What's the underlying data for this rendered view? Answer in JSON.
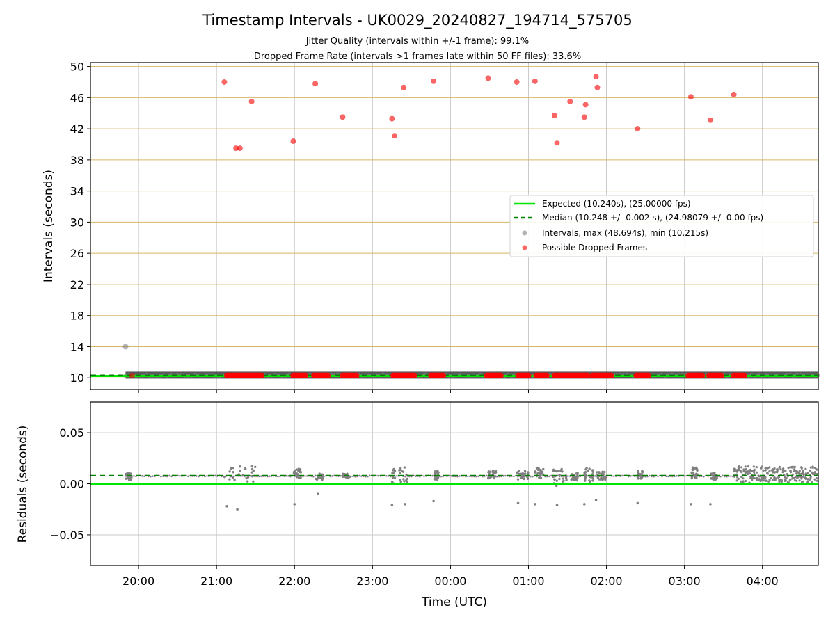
{
  "title": "Timestamp Intervals - UK0029_20240827_194714_575705",
  "subtitle_1": "Jitter Quality (intervals within +/-1 frame): 99.1%",
  "subtitle_2": "Dropped Frame Rate (intervals >1 frames late within 50 FF files): 33.6%",
  "colors": {
    "expected": "#00e600",
    "median": "#008000",
    "intervals": "#808080",
    "dropped": "#ff0000",
    "hgrid_top": "#d8b765",
    "grid": "#c8c8c8"
  },
  "chart_data": [
    {
      "type": "scatter",
      "ylabel": "Intervals (seconds)",
      "xlim": [
        "19:23",
        "04:43"
      ],
      "ylim": [
        8.5,
        50.5
      ],
      "yticks": [
        "10",
        "14",
        "18",
        "22",
        "26",
        "30",
        "34",
        "38",
        "42",
        "46",
        "50"
      ],
      "grid": true,
      "legend_position": "center-right",
      "legend": [
        "Expected (10.240s), (25.00000 fps)",
        "Median (10.248 +/- 0.002 s), (24.98079 +/- 0.00 fps)",
        "Intervals, max (48.694s), min (10.215s)",
        "Possible Dropped Frames"
      ],
      "expected": 10.24,
      "median": 10.248,
      "intervals_band": {
        "x_start": "19:50",
        "x_end": "04:43",
        "y": 10.25
      },
      "interval_outlier": {
        "x": "19:50",
        "y": 14.0
      },
      "dropped_clusters": [
        {
          "x_start": "21:08",
          "x_end": "21:35"
        },
        {
          "x_start": "21:59",
          "x_end": "22:09"
        },
        {
          "x_start": "22:15",
          "x_end": "22:26"
        },
        {
          "x_start": "22:37",
          "x_end": "22:48"
        },
        {
          "x_start": "23:16",
          "x_end": "23:33"
        },
        {
          "x_start": "23:45",
          "x_end": "23:55"
        },
        {
          "x_start": "00:28",
          "x_end": "00:39"
        },
        {
          "x_start": "00:52",
          "x_end": "01:01"
        },
        {
          "x_start": "01:06",
          "x_end": "01:15"
        },
        {
          "x_start": "01:20",
          "x_end": "01:46"
        },
        {
          "x_start": "01:49",
          "x_end": "02:04"
        },
        {
          "x_start": "02:23",
          "x_end": "02:33"
        },
        {
          "x_start": "03:03",
          "x_end": "03:14"
        },
        {
          "x_start": "03:19",
          "x_end": "03:29"
        },
        {
          "x_start": "03:38",
          "x_end": "03:47"
        }
      ],
      "dropped_frames": [
        {
          "x": "19:55",
          "y": 10.3
        },
        {
          "x": "21:06",
          "y": 48.0
        },
        {
          "x": "21:15",
          "y": 39.5
        },
        {
          "x": "21:18",
          "y": 39.5
        },
        {
          "x": "21:27",
          "y": 45.5
        },
        {
          "x": "21:59",
          "y": 40.4
        },
        {
          "x": "22:16",
          "y": 47.8
        },
        {
          "x": "22:37",
          "y": 43.5
        },
        {
          "x": "23:15",
          "y": 43.3
        },
        {
          "x": "23:17",
          "y": 41.1
        },
        {
          "x": "23:24",
          "y": 47.3
        },
        {
          "x": "23:47",
          "y": 48.1
        },
        {
          "x": "00:29",
          "y": 48.5
        },
        {
          "x": "00:51",
          "y": 48.0
        },
        {
          "x": "01:05",
          "y": 48.1
        },
        {
          "x": "01:20",
          "y": 43.7
        },
        {
          "x": "01:22",
          "y": 40.2
        },
        {
          "x": "01:32",
          "y": 45.5
        },
        {
          "x": "01:43",
          "y": 43.5
        },
        {
          "x": "01:44",
          "y": 45.1
        },
        {
          "x": "01:52",
          "y": 48.7
        },
        {
          "x": "01:53",
          "y": 47.3
        },
        {
          "x": "02:24",
          "y": 42.0
        },
        {
          "x": "03:05",
          "y": 46.1
        },
        {
          "x": "03:20",
          "y": 43.1
        },
        {
          "x": "03:38",
          "y": 46.4
        }
      ]
    },
    {
      "type": "scatter",
      "xlabel": "Time (UTC)",
      "ylabel": "Residuals (seconds)",
      "xlim": [
        "19:23",
        "04:43"
      ],
      "ylim": [
        -0.08,
        0.08
      ],
      "xticks": [
        "20:00",
        "21:00",
        "22:00",
        "23:00",
        "00:00",
        "01:00",
        "02:00",
        "03:00",
        "04:00"
      ],
      "yticks": [
        "−0.05",
        "0.00",
        "0.05"
      ],
      "grid": true,
      "expected_residual": 0.0,
      "median_residual": 0.008,
      "dense_region": {
        "x_start": "03:38",
        "x_end": "04:43",
        "y_min": 0.001,
        "y_max": 0.017
      },
      "residual_clusters": [
        {
          "x_start": "19:50",
          "x_end": "19:55",
          "y_min": 0.004,
          "y_max": 0.011
        },
        {
          "x_start": "21:06",
          "x_end": "21:30",
          "y_min": 0.002,
          "y_max": 0.017
        },
        {
          "x_start": "21:59",
          "x_end": "22:05",
          "y_min": 0.005,
          "y_max": 0.015
        },
        {
          "x_start": "22:16",
          "x_end": "22:22",
          "y_min": 0.004,
          "y_max": 0.01
        },
        {
          "x_start": "22:37",
          "x_end": "22:43",
          "y_min": 0.006,
          "y_max": 0.01
        },
        {
          "x_start": "23:15",
          "x_end": "23:28",
          "y_min": 0.0,
          "y_max": 0.018
        },
        {
          "x_start": "23:47",
          "x_end": "23:51",
          "y_min": 0.004,
          "y_max": 0.013
        },
        {
          "x_start": "00:29",
          "x_end": "00:35",
          "y_min": 0.005,
          "y_max": 0.013
        },
        {
          "x_start": "00:51",
          "x_end": "01:00",
          "y_min": 0.004,
          "y_max": 0.013
        },
        {
          "x_start": "01:05",
          "x_end": "01:12",
          "y_min": 0.005,
          "y_max": 0.016
        },
        {
          "x_start": "01:19",
          "x_end": "01:30",
          "y_min": -0.002,
          "y_max": 0.015
        },
        {
          "x_start": "01:32",
          "x_end": "01:38",
          "y_min": 0.003,
          "y_max": 0.011
        },
        {
          "x_start": "01:43",
          "x_end": "01:50",
          "y_min": 0.002,
          "y_max": 0.016
        },
        {
          "x_start": "01:52",
          "x_end": "02:00",
          "y_min": 0.004,
          "y_max": 0.012
        },
        {
          "x_start": "02:24",
          "x_end": "02:28",
          "y_min": 0.005,
          "y_max": 0.013
        },
        {
          "x_start": "03:05",
          "x_end": "03:10",
          "y_min": 0.005,
          "y_max": 0.016
        },
        {
          "x_start": "03:20",
          "x_end": "03:25",
          "y_min": 0.004,
          "y_max": 0.011
        }
      ],
      "residual_outliers": [
        {
          "x": "21:08",
          "y": -0.022
        },
        {
          "x": "21:16",
          "y": -0.025
        },
        {
          "x": "22:00",
          "y": -0.02
        },
        {
          "x": "22:18",
          "y": -0.01
        },
        {
          "x": "23:15",
          "y": -0.021
        },
        {
          "x": "23:25",
          "y": -0.02
        },
        {
          "x": "23:47",
          "y": -0.017
        },
        {
          "x": "00:52",
          "y": -0.019
        },
        {
          "x": "01:05",
          "y": -0.02
        },
        {
          "x": "01:22",
          "y": -0.021
        },
        {
          "x": "01:43",
          "y": -0.02
        },
        {
          "x": "01:52",
          "y": -0.016
        },
        {
          "x": "02:24",
          "y": -0.019
        },
        {
          "x": "03:05",
          "y": -0.02
        },
        {
          "x": "03:20",
          "y": -0.02
        }
      ]
    }
  ]
}
